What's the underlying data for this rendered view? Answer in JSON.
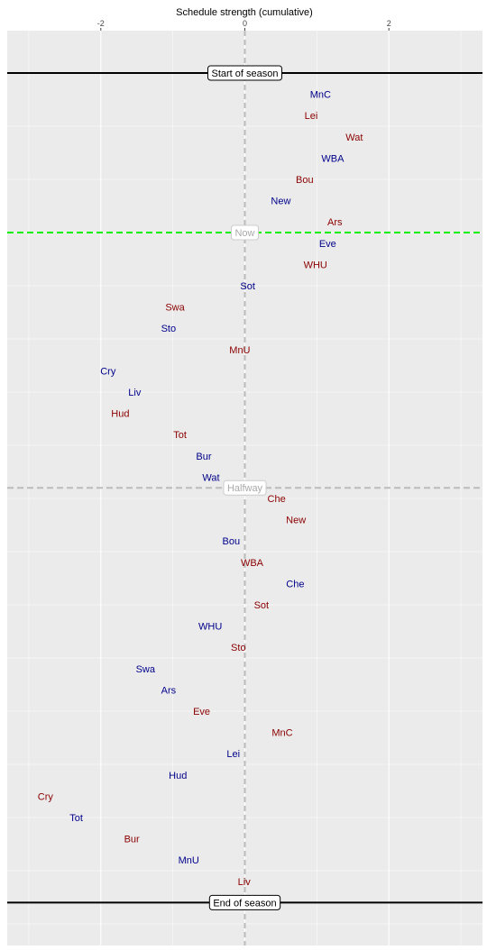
{
  "chart_data": {
    "type": "scatter",
    "title": "",
    "xlabel": "Schedule strength (cumulative)",
    "ylabel": "",
    "xlim": [
      -3.3,
      3.3
    ],
    "x_ticks": [
      -2,
      0,
      2
    ],
    "x_tick_labels": [
      "-2",
      "0",
      "2"
    ],
    "grid": true,
    "colors": {
      "home": "#00008b",
      "away": "#8b0000",
      "now_line": "#00ee00",
      "halfway_line": "#bbbbbb",
      "panel": "#ebebeb",
      "grid": "#ffffff"
    },
    "markers": [
      {
        "label": "Start of season",
        "style": "boxed",
        "line": "solid",
        "color": "#000000",
        "row": 0
      },
      {
        "label": "Now",
        "style": "faded",
        "line": "dashed",
        "color": "#00ee00",
        "row": 7.5
      },
      {
        "label": "Halfway",
        "style": "faded",
        "line": "dashed",
        "color": "#bbbbbb",
        "row": 19.5
      },
      {
        "label": "End of season",
        "style": "boxed",
        "line": "solid",
        "color": "#000000",
        "row": 39
      }
    ],
    "points": [
      {
        "team": "MnC",
        "x": 1.05,
        "venue": "home"
      },
      {
        "team": "Lei",
        "x": 0.92,
        "venue": "away"
      },
      {
        "team": "Wat",
        "x": 1.52,
        "venue": "away"
      },
      {
        "team": "WBA",
        "x": 1.22,
        "venue": "home"
      },
      {
        "team": "Bou",
        "x": 0.83,
        "venue": "away"
      },
      {
        "team": "New",
        "x": 0.5,
        "venue": "home"
      },
      {
        "team": "Ars",
        "x": 1.25,
        "venue": "away"
      },
      {
        "team": "Eve",
        "x": 1.15,
        "venue": "home"
      },
      {
        "team": "WHU",
        "x": 0.98,
        "venue": "away"
      },
      {
        "team": "Sot",
        "x": 0.04,
        "venue": "home"
      },
      {
        "team": "Swa",
        "x": -0.97,
        "venue": "away"
      },
      {
        "team": "Sto",
        "x": -1.06,
        "venue": "home"
      },
      {
        "team": "MnU",
        "x": -0.07,
        "venue": "away"
      },
      {
        "team": "Cry",
        "x": -1.9,
        "venue": "home"
      },
      {
        "team": "Liv",
        "x": -1.53,
        "venue": "home"
      },
      {
        "team": "Hud",
        "x": -1.73,
        "venue": "away"
      },
      {
        "team": "Tot",
        "x": -0.9,
        "venue": "away"
      },
      {
        "team": "Bur",
        "x": -0.57,
        "venue": "home"
      },
      {
        "team": "Wat",
        "x": -0.47,
        "venue": "home"
      },
      {
        "team": "Che",
        "x": 0.44,
        "venue": "away"
      },
      {
        "team": "New",
        "x": 0.71,
        "venue": "away"
      },
      {
        "team": "Bou",
        "x": -0.19,
        "venue": "home"
      },
      {
        "team": "WBA",
        "x": 0.1,
        "venue": "away"
      },
      {
        "team": "Che",
        "x": 0.7,
        "venue": "home"
      },
      {
        "team": "Sot",
        "x": 0.23,
        "venue": "away"
      },
      {
        "team": "WHU",
        "x": -0.48,
        "venue": "home"
      },
      {
        "team": "Sto",
        "x": -0.09,
        "venue": "away"
      },
      {
        "team": "Swa",
        "x": -1.38,
        "venue": "home"
      },
      {
        "team": "Ars",
        "x": -1.06,
        "venue": "home"
      },
      {
        "team": "Eve",
        "x": -0.6,
        "venue": "away"
      },
      {
        "team": "MnC",
        "x": 0.52,
        "venue": "away"
      },
      {
        "team": "Lei",
        "x": -0.16,
        "venue": "home"
      },
      {
        "team": "Hud",
        "x": -0.93,
        "venue": "home"
      },
      {
        "team": "Cry",
        "x": -2.77,
        "venue": "away"
      },
      {
        "team": "Tot",
        "x": -2.34,
        "venue": "home"
      },
      {
        "team": "Bur",
        "x": -1.57,
        "venue": "away"
      },
      {
        "team": "MnU",
        "x": -0.78,
        "venue": "home"
      },
      {
        "team": "Liv",
        "x": -0.01,
        "venue": "away"
      }
    ]
  }
}
